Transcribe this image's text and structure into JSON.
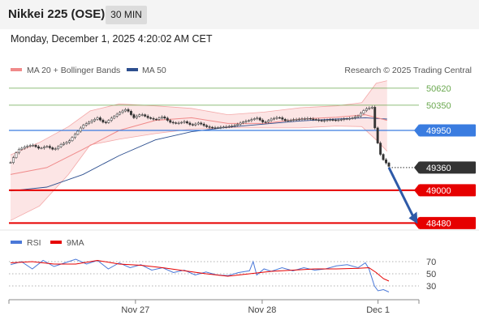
{
  "header": {
    "title": "Nikkei 225 (OSE)",
    "interval": "30 MIN"
  },
  "timestamp": "Monday, December 1, 2025 4:20:02 AM CET",
  "credit": "Research © 2025 Trading Central",
  "colors": {
    "resistance": "#6aa84f",
    "pivot": "#3a7ce0",
    "support": "#e60000",
    "last": "#333333",
    "arrow": "#2e5aa8",
    "bollinger": "#f08a8a",
    "ma50": "#2d4f8f"
  },
  "chart_data": [
    {
      "type": "candlestick",
      "legend": [
        {
          "name": "MA 20 + Bollinger Bands",
          "color": "#f08a8a"
        },
        {
          "name": "MA 50",
          "color": "#2d4f8f"
        }
      ],
      "x_ticks": [
        "Nov 27",
        "Nov 28",
        "Dec 1"
      ],
      "ylim": [
        48420,
        50760
      ],
      "levels": [
        {
          "label": "50620",
          "value": 50620,
          "kind": "resistance"
        },
        {
          "label": "50350",
          "value": 50350,
          "kind": "resistance"
        },
        {
          "label": "49950",
          "value": 49950,
          "kind": "pivot"
        },
        {
          "label": "49360",
          "value": 49360,
          "kind": "last"
        },
        {
          "label": "49000",
          "value": 49000,
          "kind": "support"
        },
        {
          "label": "48480",
          "value": 48480,
          "kind": "support"
        }
      ],
      "close_path": [
        [
          0,
          49440
        ],
        [
          2,
          49640
        ],
        [
          4,
          49690
        ],
        [
          6,
          49720
        ],
        [
          8,
          49660
        ],
        [
          10,
          49700
        ],
        [
          12,
          49640
        ],
        [
          14,
          49730
        ],
        [
          16,
          49770
        ],
        [
          18,
          49900
        ],
        [
          20,
          50030
        ],
        [
          22,
          50090
        ],
        [
          24,
          50150
        ],
        [
          26,
          50060
        ],
        [
          28,
          50150
        ],
        [
          30,
          50230
        ],
        [
          32,
          50290
        ],
        [
          34,
          50150
        ],
        [
          36,
          50210
        ],
        [
          38,
          50150
        ],
        [
          40,
          50120
        ],
        [
          42,
          50170
        ],
        [
          44,
          50080
        ],
        [
          46,
          50060
        ],
        [
          48,
          50090
        ],
        [
          50,
          50030
        ],
        [
          52,
          50070
        ],
        [
          54,
          50010
        ],
        [
          56,
          49990
        ],
        [
          58,
          50000
        ],
        [
          60,
          50010
        ],
        [
          62,
          50030
        ],
        [
          64,
          50080
        ],
        [
          66,
          50110
        ],
        [
          68,
          50150
        ],
        [
          70,
          50070
        ],
        [
          72,
          50130
        ],
        [
          74,
          50160
        ],
        [
          76,
          50100
        ],
        [
          78,
          50120
        ],
        [
          80,
          50130
        ],
        [
          82,
          50140
        ],
        [
          84,
          50120
        ],
        [
          86,
          50100
        ],
        [
          88,
          50120
        ],
        [
          90,
          50110
        ],
        [
          92,
          50130
        ],
        [
          94,
          50140
        ],
        [
          96,
          50180
        ],
        [
          98,
          50290
        ],
        [
          100,
          50320
        ],
        [
          100.8,
          49900
        ],
        [
          101.6,
          49700
        ],
        [
          102.4,
          49520
        ],
        [
          103.5,
          49450
        ],
        [
          104.5,
          49380
        ]
      ],
      "ma20": [
        [
          0,
          49250
        ],
        [
          10,
          49360
        ],
        [
          20,
          49650
        ],
        [
          30,
          49950
        ],
        [
          40,
          50110
        ],
        [
          50,
          50150
        ],
        [
          60,
          50060
        ],
        [
          70,
          50060
        ],
        [
          80,
          50130
        ],
        [
          90,
          50160
        ],
        [
          98,
          50200
        ],
        [
          104,
          50110
        ]
      ],
      "ma50": [
        [
          0,
          48990
        ],
        [
          10,
          49050
        ],
        [
          20,
          49250
        ],
        [
          30,
          49550
        ],
        [
          40,
          49800
        ],
        [
          50,
          49930
        ],
        [
          60,
          50000
        ],
        [
          70,
          50050
        ],
        [
          80,
          50100
        ],
        [
          90,
          50130
        ],
        [
          98,
          50150
        ],
        [
          104,
          50130
        ]
      ],
      "bb_upper": [
        [
          0,
          49560
        ],
        [
          8,
          49760
        ],
        [
          16,
          50010
        ],
        [
          22,
          50260
        ],
        [
          30,
          50370
        ],
        [
          40,
          50340
        ],
        [
          50,
          50300
        ],
        [
          60,
          50200
        ],
        [
          70,
          50240
        ],
        [
          80,
          50310
        ],
        [
          90,
          50340
        ],
        [
          97,
          50390
        ],
        [
          101,
          50700
        ],
        [
          104,
          50740
        ]
      ],
      "bb_lower": [
        [
          0,
          48520
        ],
        [
          8,
          48750
        ],
        [
          16,
          49250
        ],
        [
          22,
          49720
        ],
        [
          30,
          49810
        ],
        [
          40,
          49900
        ],
        [
          50,
          49970
        ],
        [
          60,
          49990
        ],
        [
          70,
          49990
        ],
        [
          80,
          49990
        ],
        [
          90,
          50020
        ],
        [
          97,
          50010
        ],
        [
          101,
          49800
        ],
        [
          104,
          49620
        ]
      ],
      "projection": [
        [
          104.5,
          49360
        ],
        [
          112,
          48480
        ]
      ]
    },
    {
      "type": "line",
      "legend": [
        {
          "name": "RSI",
          "color": "#4a78d8"
        },
        {
          "name": "9MA",
          "color": "#e60000"
        }
      ],
      "ylim": [
        10,
        90
      ],
      "ref_lines": [
        70,
        50,
        30
      ],
      "series": [
        {
          "name": "RSI",
          "values": [
            [
              0,
              65
            ],
            [
              3,
              70
            ],
            [
              6,
              58
            ],
            [
              9,
              72
            ],
            [
              12,
              62
            ],
            [
              15,
              68
            ],
            [
              18,
              74
            ],
            [
              21,
              66
            ],
            [
              24,
              72
            ],
            [
              27,
              58
            ],
            [
              30,
              68
            ],
            [
              33,
              60
            ],
            [
              36,
              65
            ],
            [
              39,
              56
            ],
            [
              42,
              60
            ],
            [
              45,
              52
            ],
            [
              48,
              56
            ],
            [
              51,
              48
            ],
            [
              54,
              53
            ],
            [
              57,
              48
            ],
            [
              60,
              47
            ],
            [
              63,
              52
            ],
            [
              66,
              55
            ],
            [
              67,
              70
            ],
            [
              68,
              48
            ],
            [
              70,
              58
            ],
            [
              72,
              54
            ],
            [
              75,
              60
            ],
            [
              78,
              55
            ],
            [
              81,
              60
            ],
            [
              84,
              56
            ],
            [
              87,
              58
            ],
            [
              90,
              63
            ],
            [
              93,
              65
            ],
            [
              96,
              60
            ],
            [
              98,
              68
            ],
            [
              99,
              58
            ],
            [
              100.5,
              30
            ],
            [
              101.5,
              22
            ],
            [
              103,
              24
            ],
            [
              104.5,
              20
            ]
          ]
        },
        {
          "name": "9MA",
          "values": [
            [
              0,
              68
            ],
            [
              6,
              70
            ],
            [
              12,
              66
            ],
            [
              18,
              66
            ],
            [
              24,
              72
            ],
            [
              30,
              66
            ],
            [
              36,
              64
            ],
            [
              42,
              60
            ],
            [
              48,
              55
            ],
            [
              54,
              50
            ],
            [
              60,
              46
            ],
            [
              66,
              50
            ],
            [
              72,
              54
            ],
            [
              78,
              56
            ],
            [
              84,
              58
            ],
            [
              90,
              58
            ],
            [
              96,
              59
            ],
            [
              99,
              60
            ],
            [
              101,
              52
            ],
            [
              103,
              42
            ],
            [
              104.5,
              38
            ]
          ]
        }
      ]
    }
  ]
}
